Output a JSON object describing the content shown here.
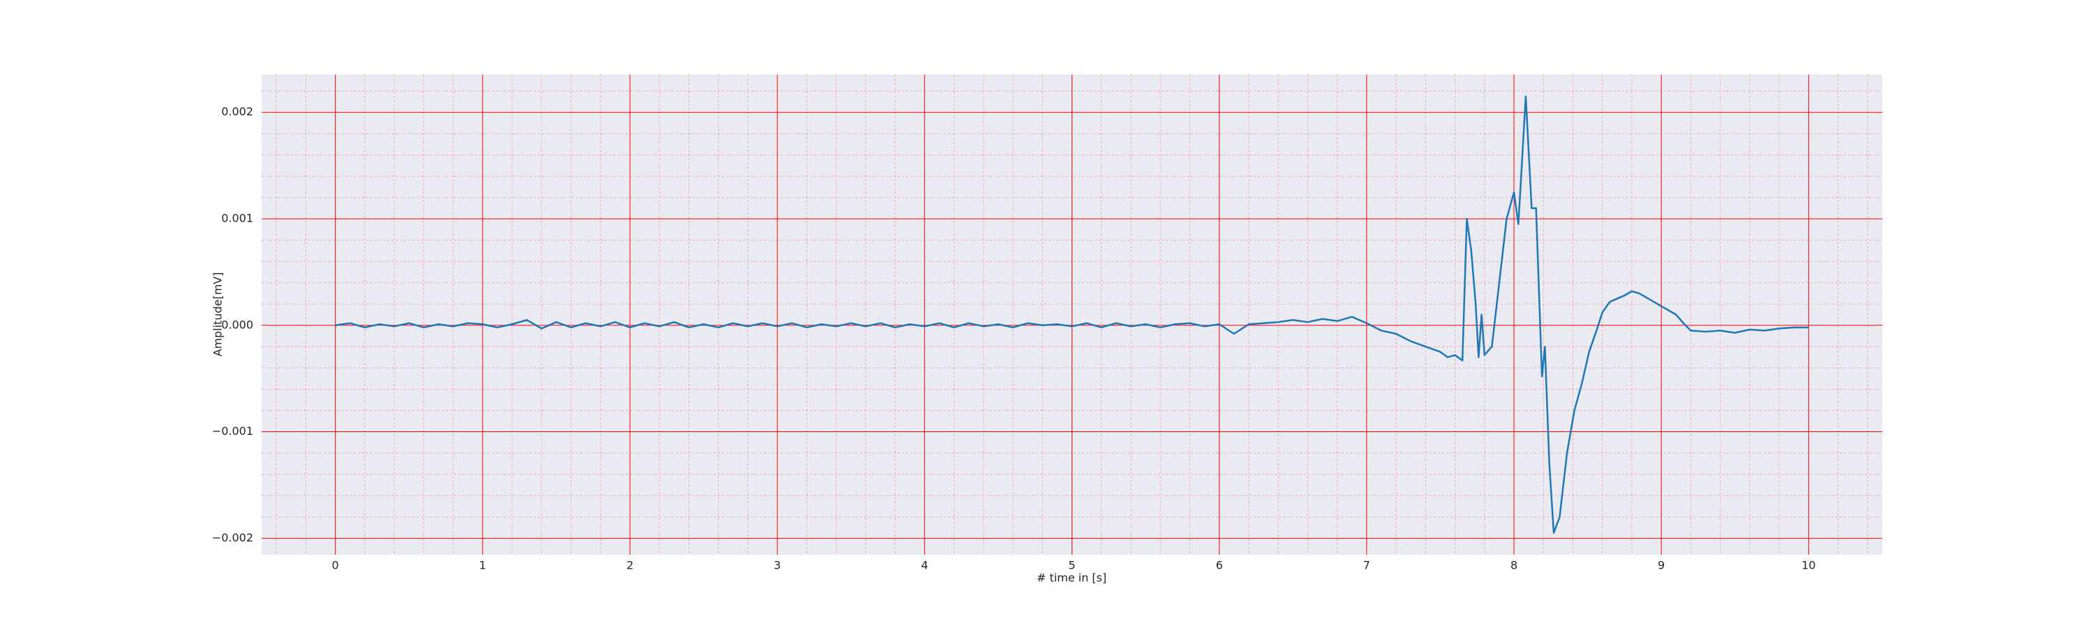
{
  "chart_data": {
    "type": "line",
    "xlabel": "# time in [s]",
    "ylabel": "Amplitude[mV]",
    "x": [
      0,
      0.1,
      0.2,
      0.3,
      0.4,
      0.5,
      0.6,
      0.7,
      0.8,
      0.9,
      1,
      1.1,
      1.2,
      1.3,
      1.4,
      1.5,
      1.6,
      1.7,
      1.8,
      1.9,
      2,
      2.1,
      2.2,
      2.3,
      2.4,
      2.5,
      2.6,
      2.7,
      2.8,
      2.9,
      3,
      3.1,
      3.2,
      3.3,
      3.4,
      3.5,
      3.6,
      3.7,
      3.8,
      3.9,
      4,
      4.1,
      4.2,
      4.3,
      4.4,
      4.5,
      4.6,
      4.7,
      4.8,
      4.9,
      5,
      5.1,
      5.2,
      5.3,
      5.4,
      5.5,
      5.6,
      5.7,
      5.8,
      5.9,
      6,
      6.1,
      6.2,
      6.3,
      6.4,
      6.5,
      6.6,
      6.7,
      6.8,
      6.9,
      7,
      7.1,
      7.2,
      7.3,
      7.4,
      7.5,
      7.55,
      7.6,
      7.65,
      7.68,
      7.71,
      7.74,
      7.76,
      7.78,
      7.8,
      7.85,
      7.9,
      7.95,
      8,
      8.03,
      8.08,
      8.12,
      8.15,
      8.19,
      8.21,
      8.24,
      8.27,
      8.31,
      8.36,
      8.41,
      8.46,
      8.51,
      8.56,
      8.6,
      8.65,
      8.7,
      8.75,
      8.8,
      8.85,
      8.9,
      8.95,
      9,
      9.05,
      9.1,
      9.15,
      9.2,
      9.3,
      9.4,
      9.5,
      9.6,
      9.7,
      9.8,
      9.9,
      10
    ],
    "series": [
      {
        "color": "#1f77b4",
        "values": [
          0,
          2e-05,
          -2e-05,
          1e-05,
          -1e-05,
          2e-05,
          -2e-05,
          1e-05,
          -1e-05,
          2e-05,
          1e-05,
          -2e-05,
          1e-05,
          5e-05,
          -3e-05,
          3e-05,
          -2e-05,
          2e-05,
          -1e-05,
          3e-05,
          -2e-05,
          2e-05,
          -1e-05,
          3e-05,
          -2e-05,
          1e-05,
          -2e-05,
          2e-05,
          -1e-05,
          2e-05,
          -1e-05,
          2e-05,
          -2e-05,
          1e-05,
          -1e-05,
          2e-05,
          -1e-05,
          2e-05,
          -2e-05,
          1e-05,
          -1e-05,
          2e-05,
          -2e-05,
          2e-05,
          -1e-05,
          1e-05,
          -2e-05,
          2e-05,
          0,
          1e-05,
          -1e-05,
          2e-05,
          -2e-05,
          2e-05,
          -1e-05,
          1e-05,
          -2e-05,
          1e-05,
          2e-05,
          -1e-05,
          1e-05,
          -8e-05,
          1e-05,
          2e-05,
          3e-05,
          5e-05,
          3e-05,
          6e-05,
          4e-05,
          8e-05,
          2e-05,
          -5e-05,
          -8e-05,
          -0.00015,
          -0.0002,
          -0.00025,
          -0.0003,
          -0.00028,
          -0.00033,
          0.001,
          0.0007,
          0.0002,
          -0.0003,
          0.0001,
          -0.00028,
          -0.0002,
          0.0004,
          0.001,
          0.00125,
          0.00095,
          0.00215,
          0.0011,
          0.0011,
          -0.00048,
          -0.0002,
          -0.0013,
          -0.00195,
          -0.0018,
          -0.0012,
          -0.0008,
          -0.00055,
          -0.00025,
          -5e-05,
          0.00012,
          0.00022,
          0.00025,
          0.00028,
          0.00032,
          0.0003,
          0.00026,
          0.00022,
          0.00018,
          0.00014,
          0.0001,
          2e-05,
          -5e-05,
          -6e-05,
          -5e-05,
          -7e-05,
          -4e-05,
          -5e-05,
          -3e-05,
          -2e-05,
          -2e-05
        ]
      }
    ],
    "xlim": [
      -0.5,
      10.5
    ],
    "ylim": [
      -0.002155,
      0.002355
    ],
    "xticks": [
      0,
      1,
      2,
      3,
      4,
      5,
      6,
      7,
      8,
      9,
      10
    ],
    "yticks": [
      {
        "value": -0.002,
        "label": "−0.002"
      },
      {
        "value": -0.001,
        "label": "−0.001"
      },
      {
        "value": 0,
        "label": "0.000"
      },
      0.001,
      0.002
    ],
    "xminorticks": [
      -0.4,
      -0.2,
      0.2,
      0.4,
      0.6,
      0.8,
      1.2,
      1.4,
      1.6,
      1.8,
      2.2,
      2.4,
      2.6,
      2.8,
      3.2,
      3.4,
      3.6,
      3.8,
      4.2,
      4.4,
      4.6,
      4.8,
      5.2,
      5.4,
      5.6,
      5.8,
      6.2,
      6.4,
      6.6,
      6.8,
      7.2,
      7.4,
      7.6,
      7.8,
      8.2,
      8.4,
      8.6,
      8.8,
      9.2,
      9.4,
      9.6,
      9.8,
      10.2,
      10.4
    ],
    "yminorticks": [
      -0.0018,
      -0.0016,
      -0.0014,
      -0.0012,
      -0.0008,
      -0.0006,
      -0.0004,
      -0.0002,
      0.0002,
      0.0004,
      0.0006,
      0.0008,
      0.0012,
      0.0014,
      0.0016,
      0.0018,
      0.0022
    ],
    "grid": true,
    "grid_color": "#ff0000",
    "minor_grid": true,
    "minor_grid_color": "#f4a3a8",
    "background": "#eaeaf2"
  }
}
